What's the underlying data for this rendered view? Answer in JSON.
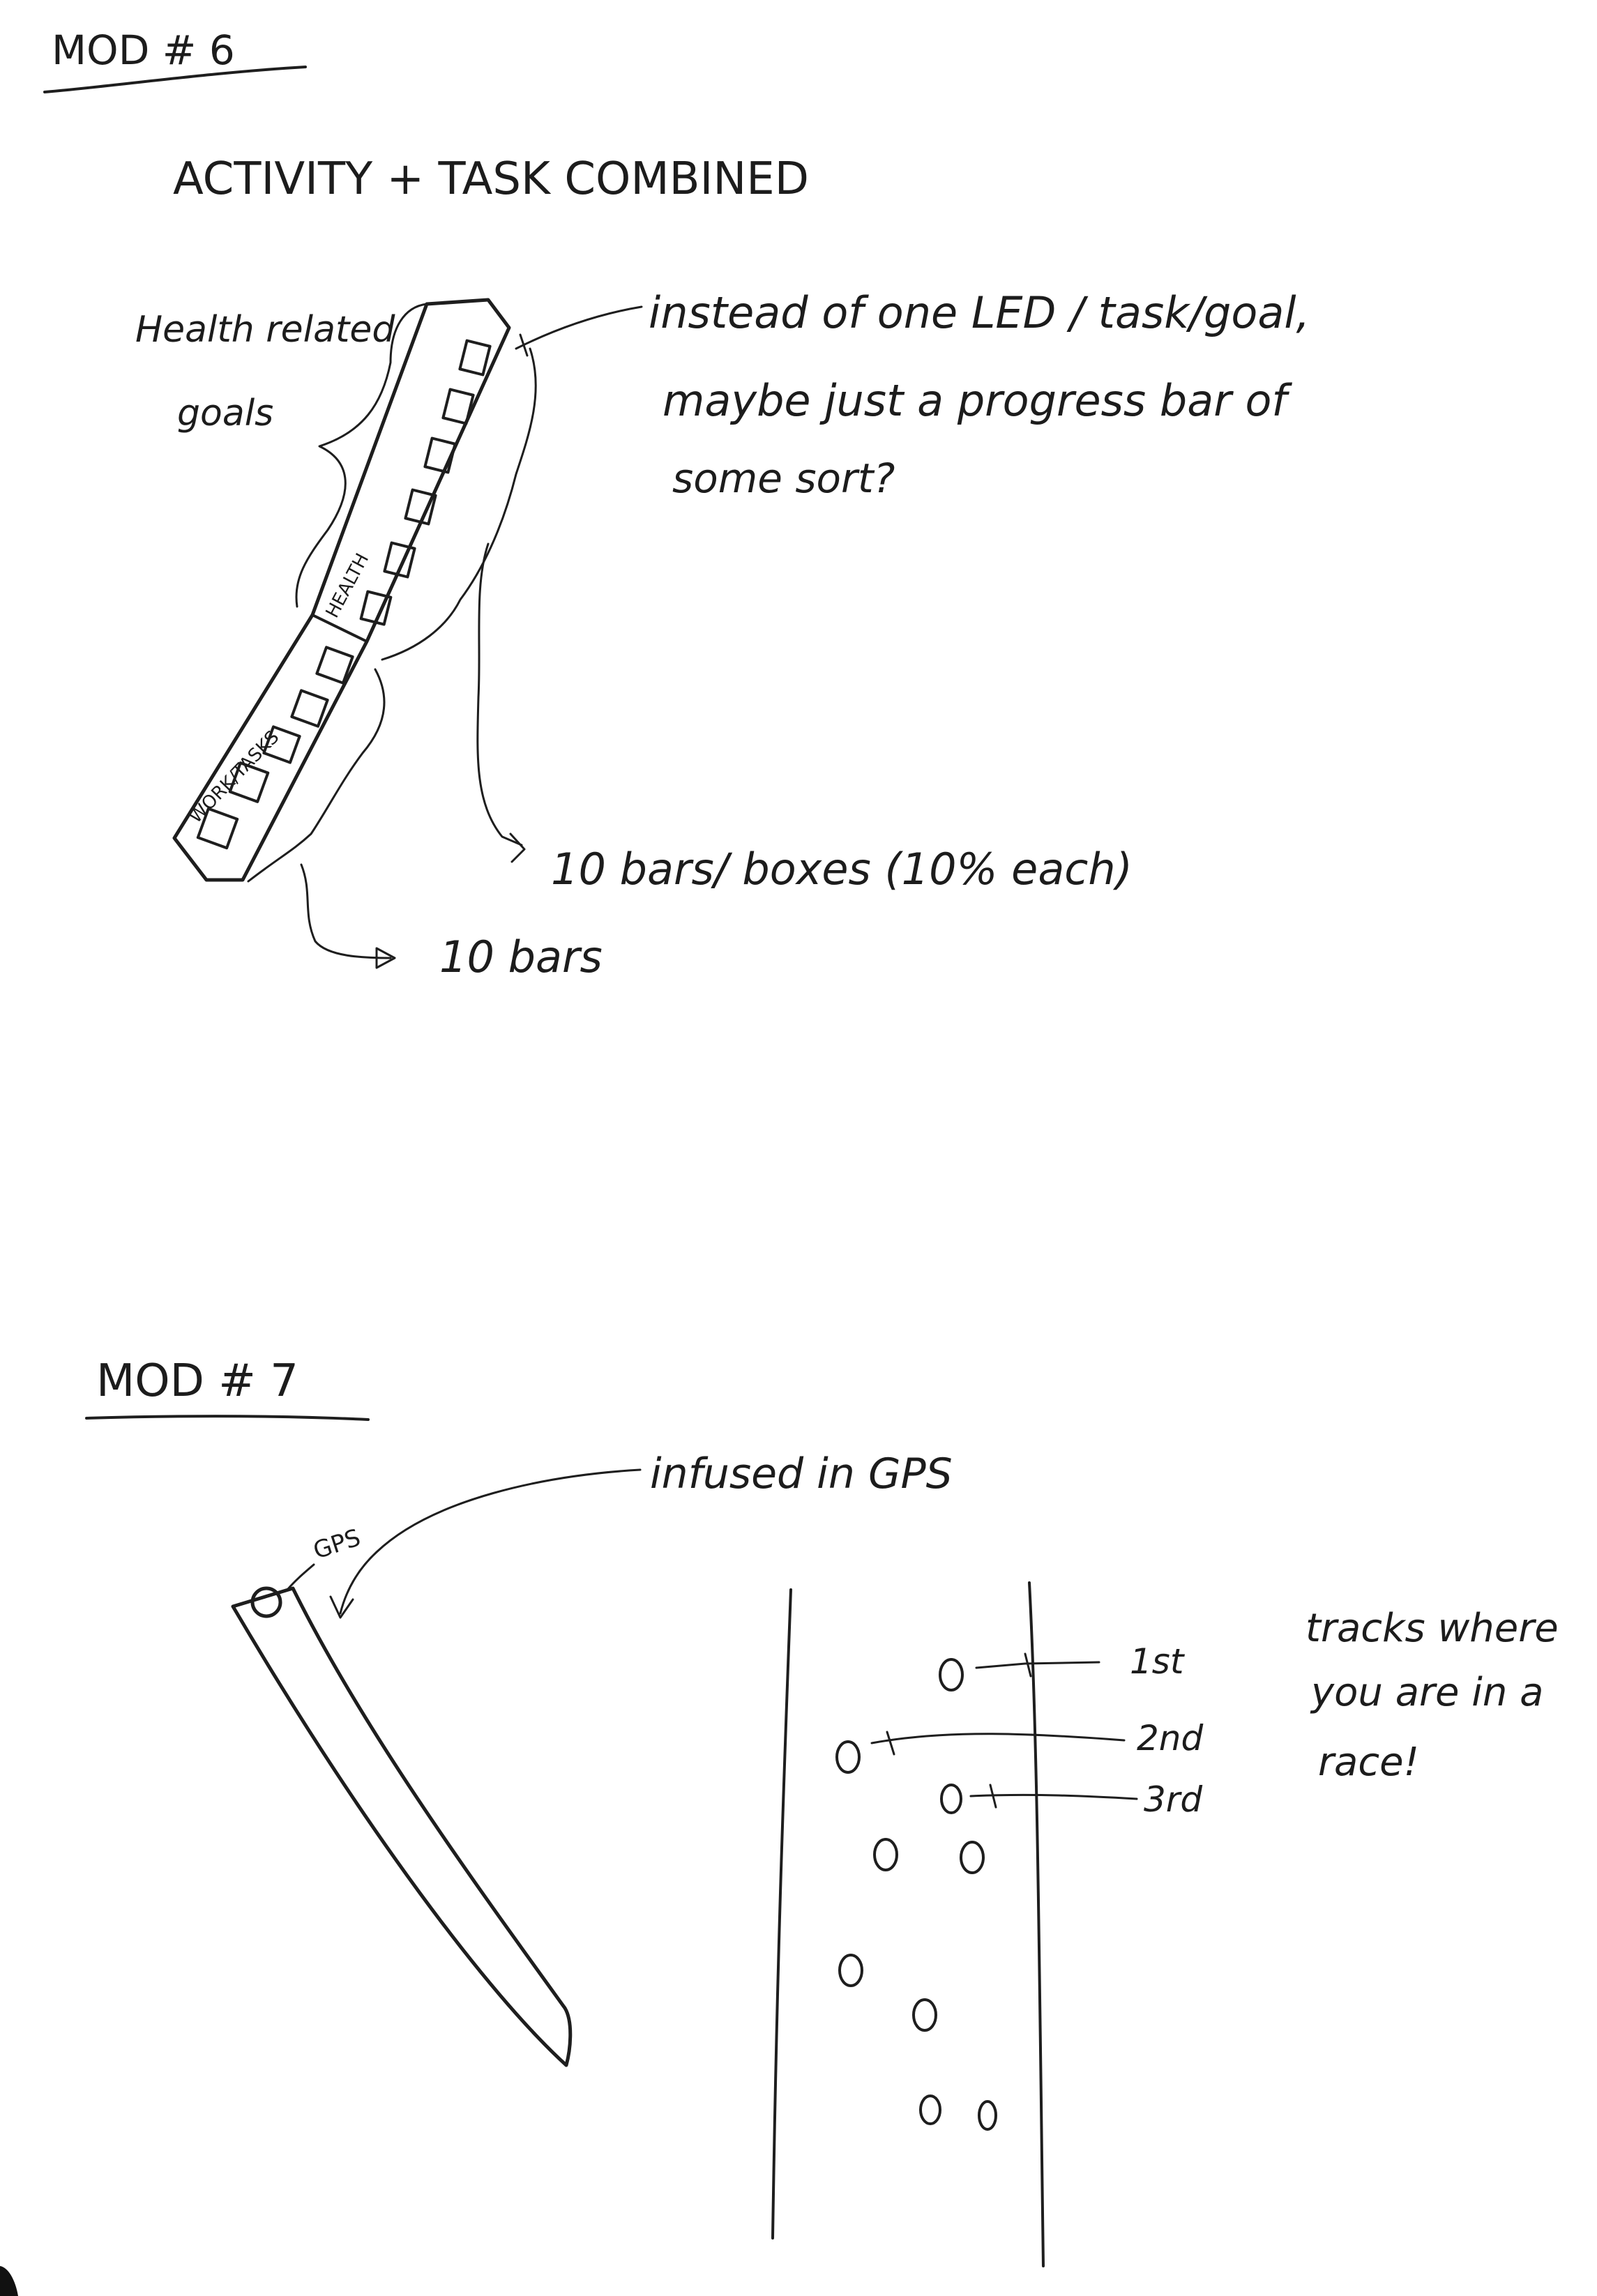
{
  "mod6": {
    "heading": "MOD # 6",
    "title": "ACTIVITY + TASK COMBINED",
    "left_label_line1": "Health related",
    "left_label_line2": "goals",
    "band_label_health": "HEALTH",
    "band_label_work": "WORK/TASKS",
    "note_line1": "instead of one LED / task/goal,",
    "note_line2": "maybe just a progress bar of",
    "note_line3": "some sort?",
    "bars_note_health": "10 bars/ boxes (10% each)",
    "bars_note_work": "10 bars"
  },
  "mod7": {
    "heading": "MOD # 7",
    "gps_tag": "GPS",
    "gps_note": "infused in GPS",
    "place_1": "1st",
    "place_2": "2nd",
    "place_3": "3rd",
    "note_line1": "tracks where",
    "note_line2": "you are in a",
    "note_line3": "race!"
  }
}
